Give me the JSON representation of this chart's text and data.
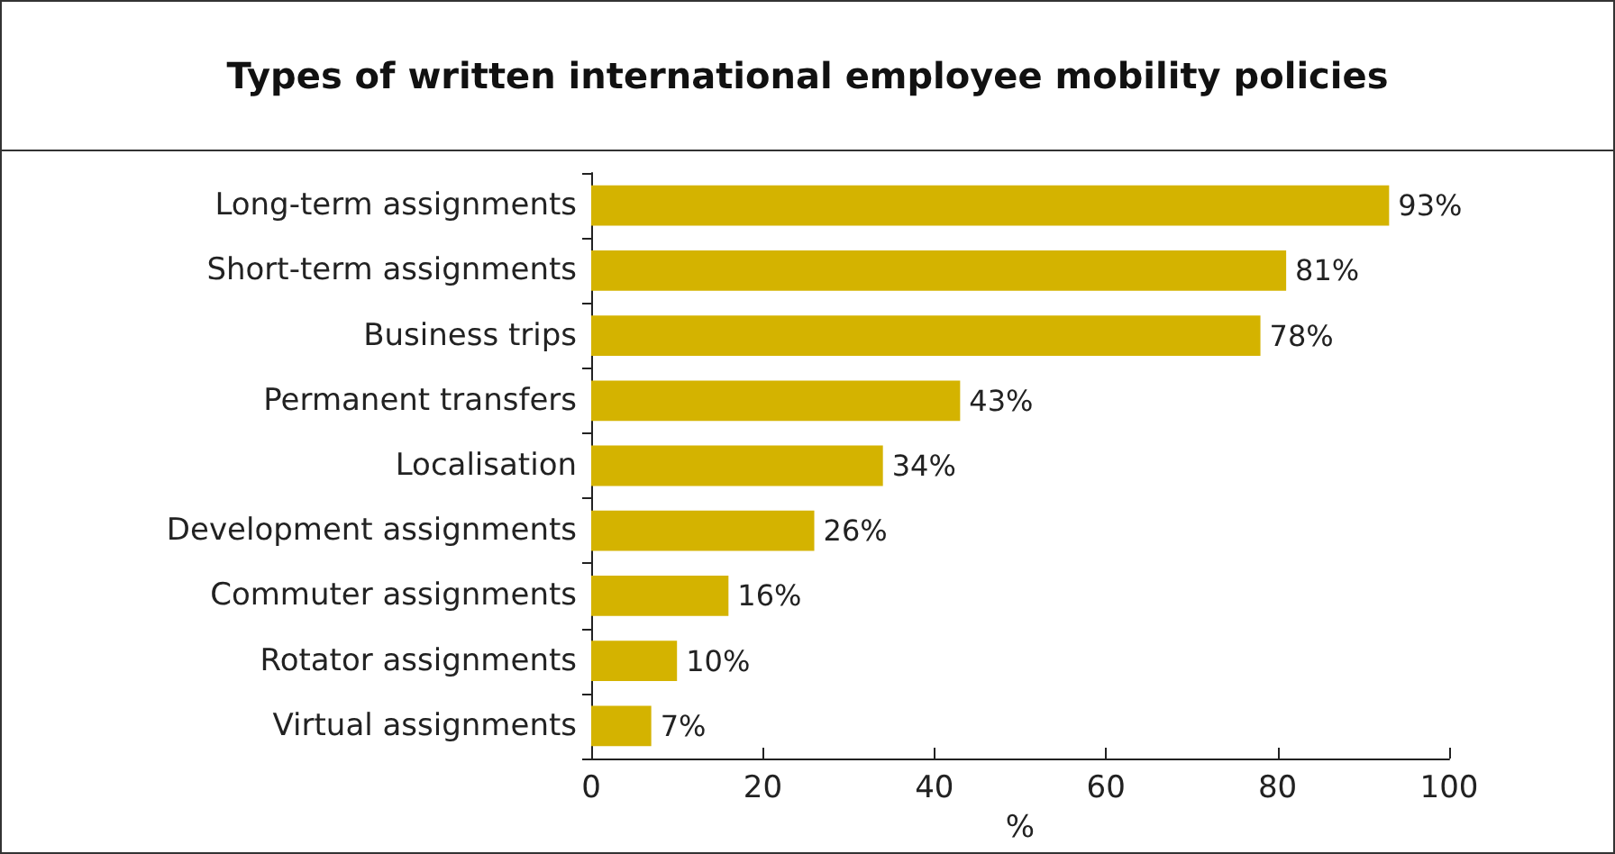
{
  "chart_data": {
    "type": "bar",
    "orientation": "horizontal",
    "title": "Types of written international employee mobility policies",
    "xlabel": "%",
    "categories": [
      "Long-term assignments",
      "Short-term assignments",
      "Business trips",
      "Permanent transfers",
      "Localisation",
      "Development assignments",
      "Commuter assignments",
      "Rotator assignments",
      "Virtual assignments"
    ],
    "values": [
      93,
      81,
      78,
      43,
      34,
      26,
      16,
      10,
      7
    ],
    "value_labels": [
      "93%",
      "81%",
      "78%",
      "43%",
      "34%",
      "26%",
      "16%",
      "10%",
      "7%"
    ],
    "color": "#d4b300",
    "xlim": [
      0,
      100
    ],
    "xticks": [
      0,
      20,
      40,
      60,
      80,
      100
    ],
    "grid": false
  }
}
